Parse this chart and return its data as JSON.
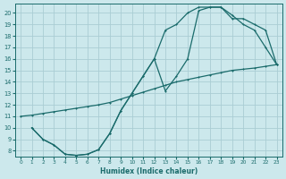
{
  "bg_color": "#cce8ec",
  "grid_color": "#aacdd4",
  "line_color": "#1a6b6b",
  "xlabel": "Humidex (Indice chaleur)",
  "xlim": [
    -0.5,
    23.5
  ],
  "ylim": [
    7.5,
    20.8
  ],
  "xticks": [
    0,
    1,
    2,
    3,
    4,
    5,
    6,
    7,
    8,
    9,
    10,
    11,
    12,
    13,
    14,
    15,
    16,
    17,
    18,
    19,
    20,
    21,
    22,
    23
  ],
  "yticks": [
    8,
    9,
    10,
    11,
    12,
    13,
    14,
    15,
    16,
    17,
    18,
    19,
    20
  ],
  "line1_x": [
    0,
    1,
    2,
    3,
    4,
    5,
    6,
    7,
    8,
    9,
    10,
    11,
    12,
    13,
    14,
    15,
    16,
    17,
    18,
    19,
    20,
    21,
    22,
    23
  ],
  "line1_y": [
    11.0,
    11.1,
    11.25,
    11.4,
    11.55,
    11.7,
    11.85,
    12.0,
    12.2,
    12.5,
    12.8,
    13.1,
    13.4,
    13.7,
    14.0,
    14.2,
    14.4,
    14.6,
    14.8,
    15.0,
    15.1,
    15.2,
    15.35,
    15.5
  ],
  "line2_x": [
    1,
    2,
    3,
    4,
    5,
    6,
    7,
    8,
    9,
    10,
    11,
    12,
    13,
    14,
    15,
    16,
    17,
    18,
    19,
    20,
    21,
    22,
    23
  ],
  "line2_y": [
    10.0,
    9.0,
    8.5,
    7.7,
    7.6,
    7.7,
    8.1,
    9.5,
    11.5,
    13.0,
    14.5,
    16.0,
    18.5,
    19.0,
    20.0,
    20.5,
    20.5,
    20.5,
    19.8,
    19.0,
    18.5,
    17.0,
    15.5
  ],
  "line3_x": [
    1,
    2,
    3,
    4,
    5,
    6,
    7,
    8,
    9,
    10,
    11,
    12,
    13,
    14,
    15,
    16,
    17,
    18,
    19,
    20,
    21,
    22,
    23
  ],
  "line3_y": [
    10.0,
    9.0,
    8.5,
    7.7,
    7.6,
    7.7,
    8.1,
    9.5,
    11.5,
    13.0,
    14.5,
    16.0,
    13.2,
    14.5,
    16.0,
    20.2,
    20.5,
    20.5,
    19.5,
    19.5,
    19.0,
    18.5,
    15.5
  ]
}
